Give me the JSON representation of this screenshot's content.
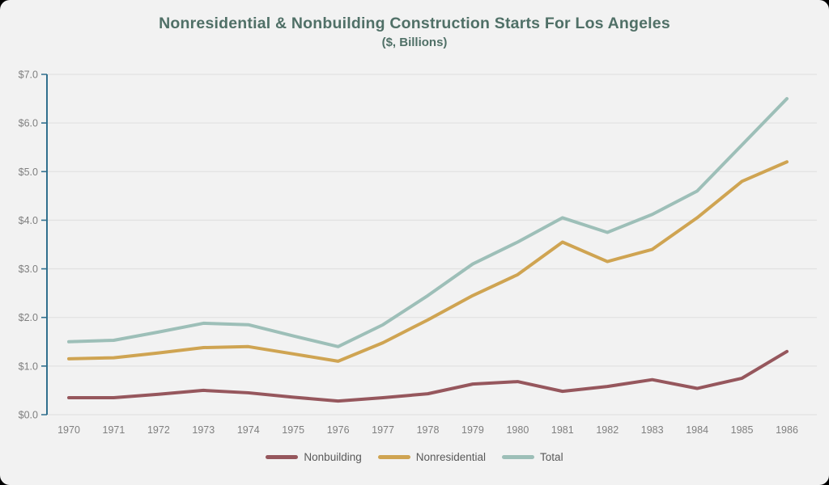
{
  "title": "Nonresidential & Nonbuilding Construction Starts For Los Angeles",
  "subtitle": "($, Billions)",
  "colors": {
    "background": "#f2f2f2",
    "title": "#507067",
    "axis": "#31708e",
    "grid": "#e2e2e2",
    "tick_label": "#7f7f7f",
    "legend_text": "#595959"
  },
  "chart_data": {
    "type": "line",
    "title": "Nonresidential & Nonbuilding Construction Starts For Los Angeles",
    "subtitle": "($, Billions)",
    "x": [
      1970,
      1971,
      1972,
      1973,
      1974,
      1975,
      1976,
      1977,
      1978,
      1979,
      1980,
      1981,
      1982,
      1983,
      1984,
      1985,
      1986
    ],
    "x_tick_labels": [
      "1970",
      "1971",
      "1972",
      "1973",
      "1974",
      "1975",
      "1976",
      "1977",
      "1978",
      "1979",
      "1980",
      "1981",
      "1982",
      "1983",
      "1984",
      "1985",
      "1986"
    ],
    "series": [
      {
        "name": "Nonbuilding",
        "color": "#96575d",
        "values": [
          0.35,
          0.35,
          0.42,
          0.5,
          0.45,
          0.36,
          0.28,
          0.35,
          0.43,
          0.63,
          0.68,
          0.48,
          0.58,
          0.72,
          0.54,
          0.75,
          1.3
        ]
      },
      {
        "name": "Nonresidential",
        "color": "#cfa452",
        "values": [
          1.15,
          1.17,
          1.27,
          1.38,
          1.4,
          1.25,
          1.1,
          1.48,
          1.95,
          2.45,
          2.88,
          3.55,
          3.15,
          3.4,
          4.05,
          4.8,
          5.2
        ]
      },
      {
        "name": "Total",
        "color": "#9dbfb8",
        "values": [
          1.5,
          1.53,
          1.7,
          1.88,
          1.85,
          1.62,
          1.4,
          1.85,
          2.45,
          3.1,
          3.55,
          4.05,
          3.75,
          4.12,
          4.6,
          5.55,
          6.5
        ]
      }
    ],
    "ylim": [
      0.0,
      7.0
    ],
    "y_tick_labels": [
      "$0.0",
      "$1.0",
      "$2.0",
      "$3.0",
      "$4.0",
      "$5.0",
      "$6.0",
      "$7.0"
    ],
    "grid": true,
    "legend_position": "bottom"
  }
}
